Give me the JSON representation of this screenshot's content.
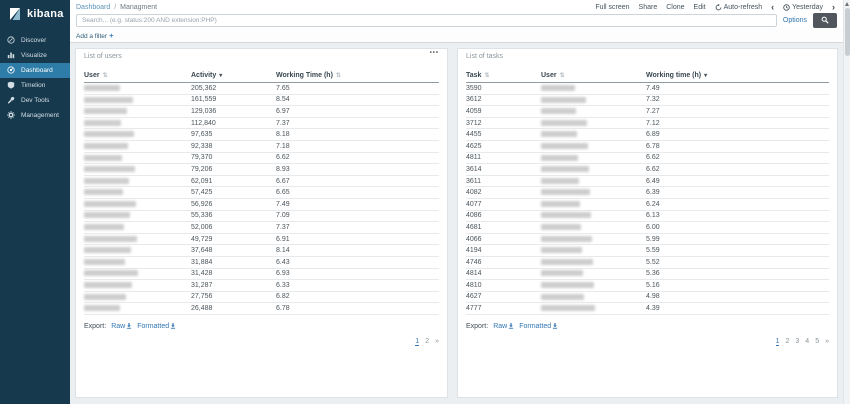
{
  "sidebar": {
    "logo": "kibana",
    "items": [
      {
        "label": "Discover",
        "icon": "compass-icon",
        "active": false
      },
      {
        "label": "Visualize",
        "icon": "bar-chart-icon",
        "active": false
      },
      {
        "label": "Dashboard",
        "icon": "dashboard-icon",
        "active": true
      },
      {
        "label": "Timelion",
        "icon": "clock-icon",
        "active": false
      },
      {
        "label": "Dev Tools",
        "icon": "wrench-icon",
        "active": false
      },
      {
        "label": "Management",
        "icon": "gear-icon",
        "active": false
      }
    ]
  },
  "topnav": {
    "breadcrumb": {
      "root": "Dashboard",
      "separator": "/",
      "current": "Managment"
    },
    "actions": [
      "Full screen",
      "Share",
      "Clone",
      "Edit"
    ],
    "auto_refresh_label": "Auto-refresh",
    "time_picker_label": "Yesterday",
    "search_placeholder": "Search... (e.g. status:200 AND extension:PHP)",
    "search_value": "",
    "options_label": "Options",
    "add_filter_label": "Add a filter",
    "add_filter_plus": "+"
  },
  "icons": {
    "chevron_left": "‹",
    "chevron_right": "›",
    "panel_menu": "•••",
    "sort_both": "⇅",
    "sort_desc": "▾"
  },
  "colors": {
    "sidebar_bg": "#16394d",
    "sidebar_active": "#2e7ca8",
    "link_blue": "#3276b1",
    "panel_border": "#dce2e6",
    "content_bg": "#ebeff2",
    "search_button_bg": "#51575d"
  },
  "panels": {
    "users": {
      "title": "List of users",
      "columns": [
        {
          "label": "User",
          "sort": "none"
        },
        {
          "label": "Activity",
          "sort": "desc"
        },
        {
          "label": "Working Time (h)",
          "sort": "none"
        }
      ],
      "rows": [
        {
          "activity": "205,362",
          "hours": "7.65"
        },
        {
          "activity": "161,559",
          "hours": "8.54"
        },
        {
          "activity": "129,036",
          "hours": "6.97"
        },
        {
          "activity": "112,840",
          "hours": "7.37"
        },
        {
          "activity": "97,635",
          "hours": "8.18"
        },
        {
          "activity": "92,338",
          "hours": "7.18"
        },
        {
          "activity": "79,370",
          "hours": "6.62"
        },
        {
          "activity": "79,206",
          "hours": "8.93"
        },
        {
          "activity": "62,091",
          "hours": "6.67"
        },
        {
          "activity": "57,425",
          "hours": "6.65"
        },
        {
          "activity": "56,926",
          "hours": "7.49"
        },
        {
          "activity": "55,336",
          "hours": "7.09"
        },
        {
          "activity": "52,006",
          "hours": "7.37"
        },
        {
          "activity": "49,729",
          "hours": "6.91"
        },
        {
          "activity": "37,648",
          "hours": "8.14"
        },
        {
          "activity": "31,884",
          "hours": "6.43"
        },
        {
          "activity": "31,428",
          "hours": "6.93"
        },
        {
          "activity": "31,287",
          "hours": "6.33"
        },
        {
          "activity": "27,756",
          "hours": "6.82"
        },
        {
          "activity": "26,488",
          "hours": "6.78"
        }
      ],
      "export_label": "Export:",
      "export_raw": "Raw",
      "export_formatted": "Formatted",
      "pages": [
        "1",
        "2",
        "»"
      ],
      "active_page": "1"
    },
    "tasks": {
      "title": "List of tasks",
      "columns": [
        {
          "label": "Task",
          "sort": "none"
        },
        {
          "label": "User",
          "sort": "none"
        },
        {
          "label": "Working time (h)",
          "sort": "desc"
        }
      ],
      "rows": [
        {
          "task": "3590",
          "hours": "7.49"
        },
        {
          "task": "3612",
          "hours": "7.32"
        },
        {
          "task": "4059",
          "hours": "7.27"
        },
        {
          "task": "3712",
          "hours": "7.12"
        },
        {
          "task": "4455",
          "hours": "6.89"
        },
        {
          "task": "4625",
          "hours": "6.78"
        },
        {
          "task": "4811",
          "hours": "6.62"
        },
        {
          "task": "3614",
          "hours": "6.62"
        },
        {
          "task": "3611",
          "hours": "6.49"
        },
        {
          "task": "4082",
          "hours": "6.39"
        },
        {
          "task": "4077",
          "hours": "6.24"
        },
        {
          "task": "4086",
          "hours": "6.13"
        },
        {
          "task": "4681",
          "hours": "6.00"
        },
        {
          "task": "4066",
          "hours": "5.99"
        },
        {
          "task": "4194",
          "hours": "5.59"
        },
        {
          "task": "4746",
          "hours": "5.52"
        },
        {
          "task": "4814",
          "hours": "5.36"
        },
        {
          "task": "4810",
          "hours": "5.16"
        },
        {
          "task": "4627",
          "hours": "4.98"
        },
        {
          "task": "4777",
          "hours": "4.39"
        }
      ],
      "export_label": "Export:",
      "export_raw": "Raw",
      "export_formatted": "Formatted",
      "pages": [
        "1",
        "2",
        "3",
        "4",
        "5",
        "»"
      ],
      "active_page": "1"
    }
  }
}
